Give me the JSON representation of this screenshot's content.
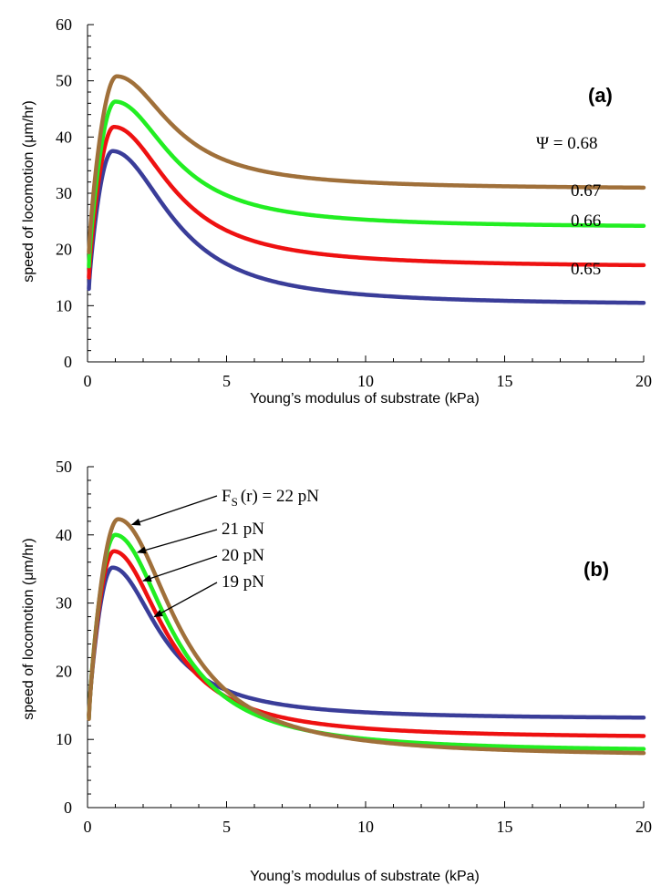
{
  "chart_data": [
    {
      "type": "line",
      "panel_label": "(a)",
      "xlabel": "Young’s modulus of substrate (kPa)",
      "ylabel": "speed of locomotion  (μm/hr)",
      "xlim": [
        0,
        20
      ],
      "ylim": [
        0,
        60
      ],
      "x_ticks": [
        "0",
        "5",
        "10",
        "15",
        "20"
      ],
      "y_ticks": [
        "0",
        "10",
        "20",
        "30",
        "40",
        "50",
        "60"
      ],
      "series": [
        {
          "name": "ψ = 0.68",
          "color": "#a0703a",
          "x0": 0.05,
          "y0": 19.5,
          "peak_x": 1.05,
          "peak_y": 50.8,
          "end_y": 31.0,
          "decay": 0.21
        },
        {
          "name": "0.67",
          "color": "#22ee22",
          "x0": 0.05,
          "y0": 17.0,
          "peak_x": 1.0,
          "peak_y": 46.3,
          "end_y": 24.2,
          "decay": 0.2
        },
        {
          "name": "0.66",
          "color": "#ee1111",
          "x0": 0.05,
          "y0": 15.0,
          "peak_x": 0.95,
          "peak_y": 41.8,
          "end_y": 17.2,
          "decay": 0.19
        },
        {
          "name": "0.65",
          "color": "#3a3d99",
          "x0": 0.05,
          "y0": 13.0,
          "peak_x": 0.9,
          "peak_y": 37.5,
          "end_y": 10.5,
          "decay": 0.18
        }
      ],
      "annotations": [
        "Ψ = 0.68",
        "0.67",
        "0.66",
        "0.65"
      ]
    },
    {
      "type": "line",
      "panel_label": "(b)",
      "xlabel": "Young’s modulus of substrate (kPa)",
      "ylabel": "speed of locomotion  (μm/hr)",
      "xlim": [
        0,
        20
      ],
      "ylim": [
        0,
        50
      ],
      "x_ticks": [
        "0",
        "5",
        "10",
        "15",
        "20"
      ],
      "y_ticks": [
        "0",
        "10",
        "20",
        "30",
        "40",
        "50"
      ],
      "series": [
        {
          "name": "Fs(r) = 22 pN",
          "color": "#a0703a",
          "x0": 0.05,
          "y0": 13.0,
          "peak_x": 1.1,
          "peak_y": 42.3,
          "end_y": 8.0,
          "decay": 0.19
        },
        {
          "name": "21 pN",
          "color": "#22ee22",
          "x0": 0.05,
          "y0": 13.2,
          "peak_x": 1.0,
          "peak_y": 40.0,
          "end_y": 8.6,
          "decay": 0.21
        },
        {
          "name": "20 pN",
          "color": "#ee1111",
          "x0": 0.05,
          "y0": 13.4,
          "peak_x": 0.95,
          "peak_y": 37.6,
          "end_y": 10.5,
          "decay": 0.24
        },
        {
          "name": "19 pN",
          "color": "#3a3d99",
          "x0": 0.05,
          "y0": 13.6,
          "peak_x": 0.9,
          "peak_y": 35.2,
          "end_y": 13.2,
          "decay": 0.28
        }
      ],
      "annotations": [
        "F",
        "S",
        "(r) = 22 pN",
        "21 pN",
        "20 pN",
        "19 pN"
      ]
    }
  ]
}
